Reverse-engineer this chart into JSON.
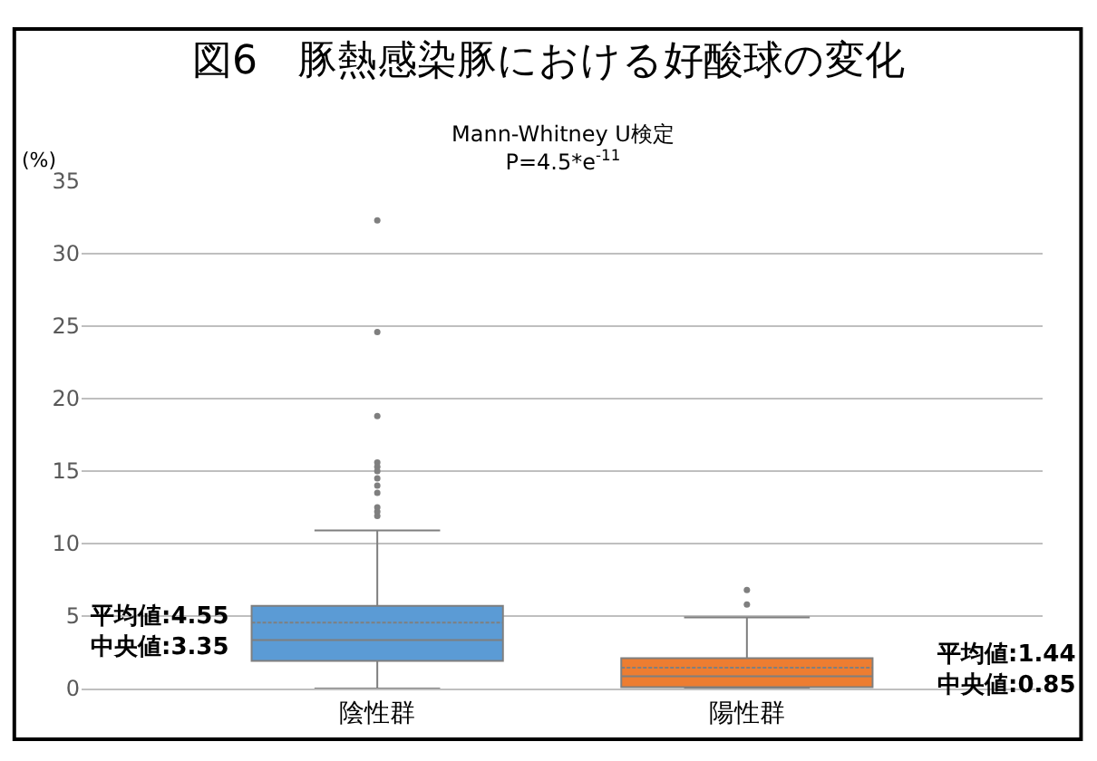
{
  "chart_data": {
    "type": "box",
    "title": "図6　豚熱感染豚における好酸球の変化",
    "subtitle": "Mann-Whitney U検定\nP=4.5*e$^{-11}$",
    "ylabel": "(%)",
    "categories": [
      "陰性群",
      "陽性群"
    ],
    "series": [
      {
        "color": "#5b9bd5",
        "boxes": [
          {
            "low": 0,
            "q1": 1.9,
            "median": 3.35,
            "q3": 5.7,
            "high": 10.9,
            "mean": 4.55,
            "outliers": [
              32.3,
              24.6,
              18.8,
              15.6,
              15.3,
              15.0,
              14.5,
              14.0,
              13.5,
              12.5,
              12.2,
              11.9
            ]
          },
          null
        ]
      },
      {
        "color": "#ed7d31",
        "boxes": [
          null,
          {
            "low": 0,
            "q1": 0.1,
            "median": 0.85,
            "q3": 2.1,
            "high": 4.9,
            "mean": 1.44,
            "outliers": [
              6.8,
              5.8
            ]
          }
        ]
      }
    ],
    "ylim": [
      0,
      35
    ],
    "yticks": [
      0,
      5,
      10,
      15,
      20,
      25,
      30,
      35
    ],
    "grid": "y",
    "legend": false,
    "annotations": [
      "平均値:4.55\n中央値:3.35",
      "平均値:1.44\n中央値:0.85"
    ]
  }
}
